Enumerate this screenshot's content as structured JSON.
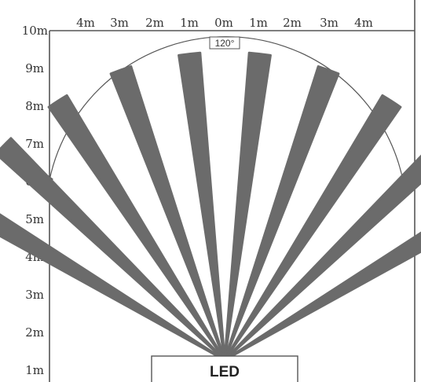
{
  "diagram": {
    "top_axis_labels": [
      "4m",
      "3m",
      "2m",
      "1m",
      "0m",
      "1m",
      "2m",
      "3m",
      "4m"
    ],
    "left_axis_labels": [
      "10m",
      "9m",
      "8m",
      "7m",
      "6m",
      "5m",
      "4m",
      "3m",
      "2m",
      "1m"
    ],
    "angle_label": "120°",
    "sensor_label": "LED",
    "beam_count": 10,
    "beam_color": "#6b6b6b",
    "line_color": "#555555"
  }
}
